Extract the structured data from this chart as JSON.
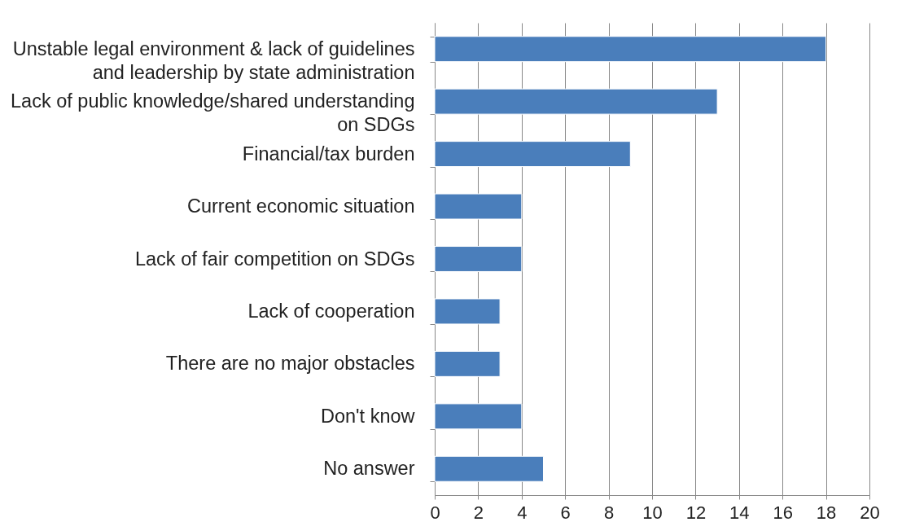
{
  "chart_data": {
    "type": "bar",
    "orientation": "horizontal",
    "categories": [
      "Unstable legal environment & lack of guidelines and leadership by state administration",
      "Lack of public knowledge/shared understanding on SDGs",
      "Financial/tax burden",
      "Current economic situation",
      "Lack of fair competition on SDGs",
      "Lack of cooperation",
      "There are no major obstacles",
      "Don't know",
      "No answer"
    ],
    "values": [
      18,
      13,
      9,
      4,
      4,
      3,
      3,
      4,
      5
    ],
    "color": "#4a7ebb",
    "xlim": [
      0,
      20
    ],
    "xticks": [
      0,
      2,
      4,
      6,
      8,
      10,
      12,
      14,
      16,
      18,
      20
    ],
    "grid": "x"
  }
}
